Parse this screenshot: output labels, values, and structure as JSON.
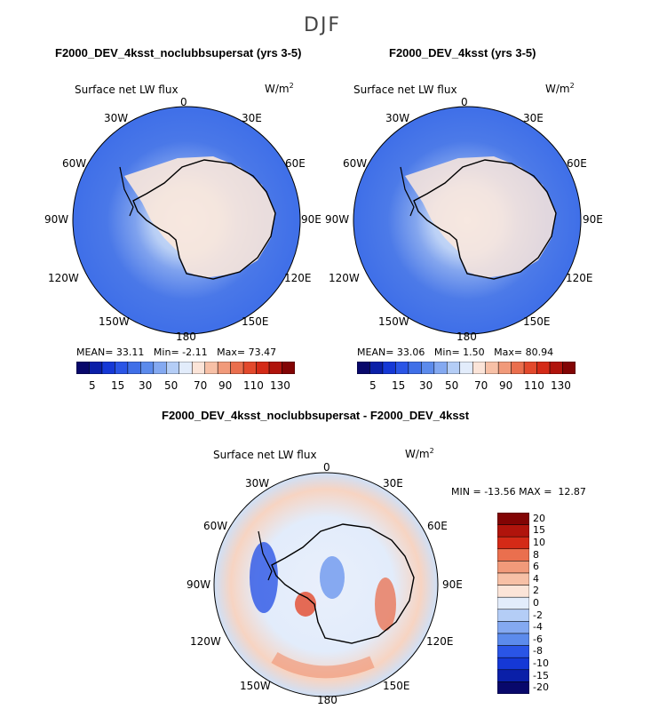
{
  "season": "DJF",
  "units_main": "W/m",
  "units_sup": "2",
  "variable": "Surface net LW flux",
  "panels": [
    {
      "title": "F2000_DEV_4ksst_noclubbsupersat (yrs 3-5)",
      "mean_label": "MEAN=",
      "mean": "33.11",
      "min_label": "Min=",
      "min": "-2.11",
      "max_label": "Max=",
      "max": "73.47"
    },
    {
      "title": "F2000_DEV_4ksst (yrs 3-5)",
      "mean_label": "MEAN=",
      "mean": "33.06",
      "min_label": "Min=",
      "min": "1.50",
      "max_label": "Max=",
      "max": "80.94"
    }
  ],
  "diff": {
    "title": "F2000_DEV_4ksst_noclubbsupersat - F2000_DEV_4ksst",
    "min_label": "MIN =",
    "min": "-13.56",
    "max_label": "MAX =",
    "max": "12.87"
  },
  "lon_labels": {
    "l0": "0",
    "l30e": "30E",
    "l60e": "60E",
    "l90e": "90E",
    "l120e": "120E",
    "l150e": "150E",
    "l180": "180",
    "l150w": "150W",
    "l120w": "120W",
    "l90w": "90W",
    "l60w": "60W",
    "l30w": "30W"
  },
  "colorbar_main": {
    "colors": [
      "#08086b",
      "#0a1fa8",
      "#1538d6",
      "#2a55e6",
      "#3f6fe8",
      "#5c8bec",
      "#84a9f1",
      "#b4cdf6",
      "#e2ecfb",
      "#fbe4d8",
      "#f7c0a6",
      "#f19a7a",
      "#ea6f4e",
      "#e3492c",
      "#d42a17",
      "#b0140c",
      "#820404"
    ],
    "labels": [
      "5",
      "15",
      "30",
      "50",
      "70",
      "90",
      "110",
      "130"
    ]
  },
  "colorbar_diff": {
    "colors": [
      "#820404",
      "#b0140c",
      "#d42a17",
      "#ea6f4e",
      "#f19a7a",
      "#f7c0a6",
      "#fbe4d8",
      "#e2ecfb",
      "#b4cdf6",
      "#84a9f1",
      "#5c8bec",
      "#2a55e6",
      "#1538d6",
      "#0a1fa8",
      "#08086b"
    ],
    "labels": [
      "20",
      "15",
      "10",
      "8",
      "6",
      "4",
      "2",
      "0",
      "-2",
      "-4",
      "-6",
      "-8",
      "-10",
      "-15",
      "-20"
    ]
  }
}
